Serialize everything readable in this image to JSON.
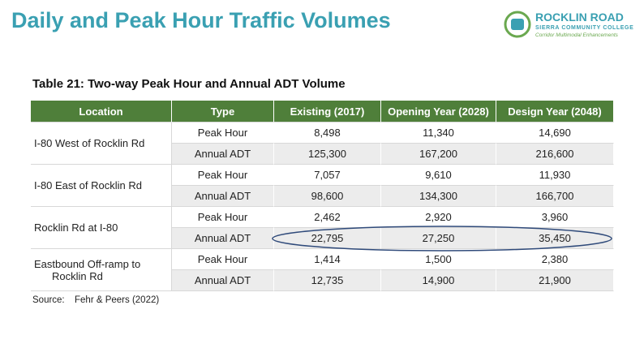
{
  "header": {
    "title": "Daily and Peak Hour Traffic Volumes",
    "logo": {
      "name": "ROCKLIN ROAD",
      "org": "SIERRA COMMUNITY COLLEGE",
      "tagline": "Corridor Multimodal Enhancements"
    }
  },
  "table": {
    "caption": "Table 21: Two-way Peak Hour and Annual ADT Volume",
    "headers": [
      "Location",
      "Type",
      "Existing (2017)",
      "Opening Year (2028)",
      "Design Year (2048)"
    ],
    "groups": [
      {
        "location": "I-80 West of Rocklin Rd",
        "rows": [
          [
            "Peak Hour",
            "8,498",
            "11,340",
            "14,690"
          ],
          [
            "Annual ADT",
            "125,300",
            "167,200",
            "216,600"
          ]
        ]
      },
      {
        "location": "I-80 East of Rocklin Rd",
        "rows": [
          [
            "Peak Hour",
            "7,057",
            "9,610",
            "11,930"
          ],
          [
            "Annual ADT",
            "98,600",
            "134,300",
            "166,700"
          ]
        ]
      },
      {
        "location": "Rocklin Rd at I-80",
        "rows": [
          [
            "Peak Hour",
            "2,462",
            "2,920",
            "3,960"
          ],
          [
            "Annual ADT",
            "22,795",
            "27,250",
            "35,450"
          ]
        ]
      },
      {
        "location": "Eastbound Off-ramp to Rocklin Rd",
        "rows": [
          [
            "Peak Hour",
            "1,414",
            "1,500",
            "2,380"
          ],
          [
            "Annual ADT",
            "12,735",
            "14,900",
            "21,900"
          ]
        ]
      }
    ],
    "source_label": "Source:",
    "source": "Fehr & Peers (2022)"
  }
}
